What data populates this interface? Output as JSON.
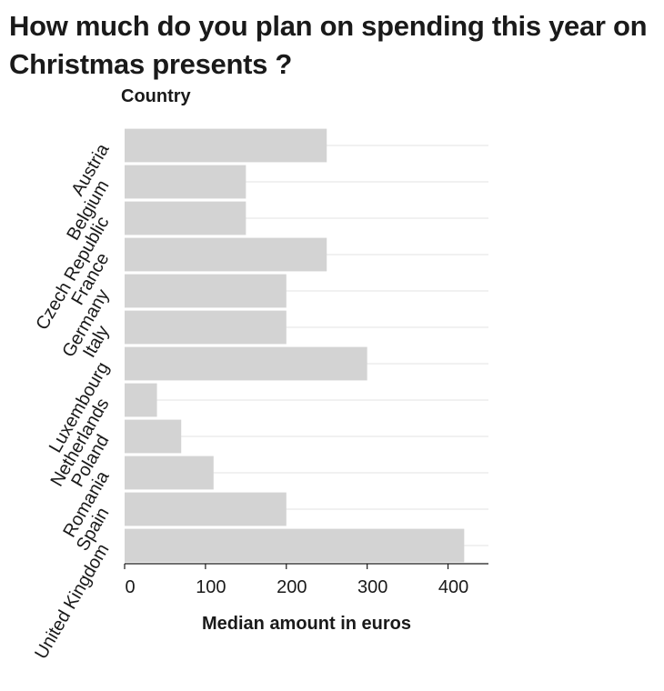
{
  "chart_data": {
    "type": "bar",
    "orientation": "horizontal",
    "title": "How much do you plan on spending this year on Christmas presents ?",
    "ylabel": "Country",
    "xlabel": "Median amount in euros",
    "categories": [
      "Austria",
      "Belgium",
      "Czech Republic",
      "France",
      "Germany",
      "Italy",
      "Luxembourg",
      "Netherlands",
      "Poland",
      "Romania",
      "Spain",
      "United Kingdom"
    ],
    "values": [
      250,
      150,
      150,
      250,
      200,
      200,
      300,
      40,
      70,
      110,
      200,
      420
    ],
    "xticks": [
      0,
      100,
      200,
      300,
      400
    ],
    "xlim": [
      0,
      450
    ],
    "bar_color": "#d3d3d3",
    "grid": true
  }
}
